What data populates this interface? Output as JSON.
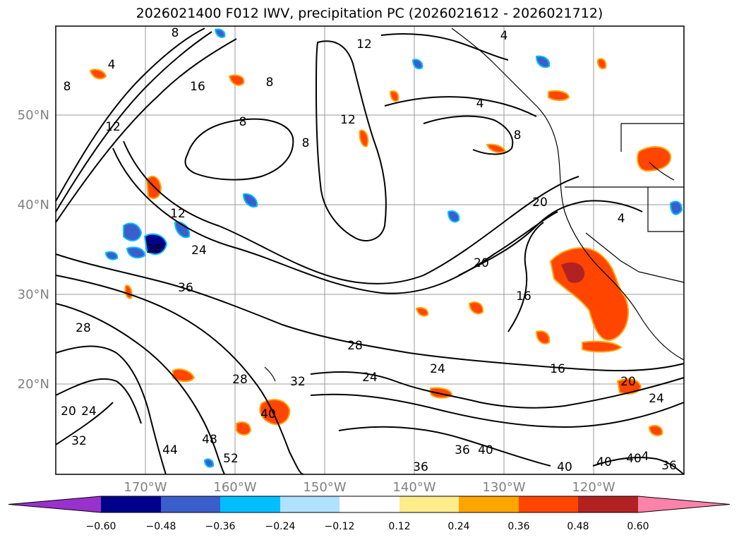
{
  "title": "2026021400 F012 IWV, precipitation PC (2026021612 - 2026021712)",
  "map": {
    "lat_labels": [
      "50°N",
      "40°N",
      "30°N",
      "20°N"
    ],
    "lon_labels": [
      "170°W",
      "160°W",
      "150°W",
      "140°W",
      "130°W",
      "120°W"
    ],
    "contour_labels": [
      "8",
      "4",
      "16",
      "12",
      "8",
      "8",
      "8",
      "12",
      "4",
      "8",
      "4",
      "8",
      "12",
      "12",
      "24",
      "28",
      "36",
      "20",
      "20",
      "16",
      "4",
      "28",
      "28",
      "24",
      "24",
      "28",
      "16",
      "20",
      "24",
      "32",
      "20",
      "24",
      "32",
      "44",
      "48",
      "52",
      "40",
      "36",
      "36",
      "40",
      "40",
      "40",
      "36",
      "40",
      "4"
    ]
  },
  "colorbar": {
    "tick_labels": [
      "−0.60",
      "−0.48",
      "−0.36",
      "−0.24",
      "−0.12",
      "0.12",
      "0.24",
      "0.36",
      "0.48",
      "0.60"
    ],
    "colors": [
      "#9932cc",
      "#00008b",
      "#3a5fcd",
      "#00bfff",
      "#b0e2ff",
      "#ffffff",
      "#ffec8b",
      "#ffa500",
      "#ff4500",
      "#b22222",
      "#ff82ab"
    ]
  }
}
